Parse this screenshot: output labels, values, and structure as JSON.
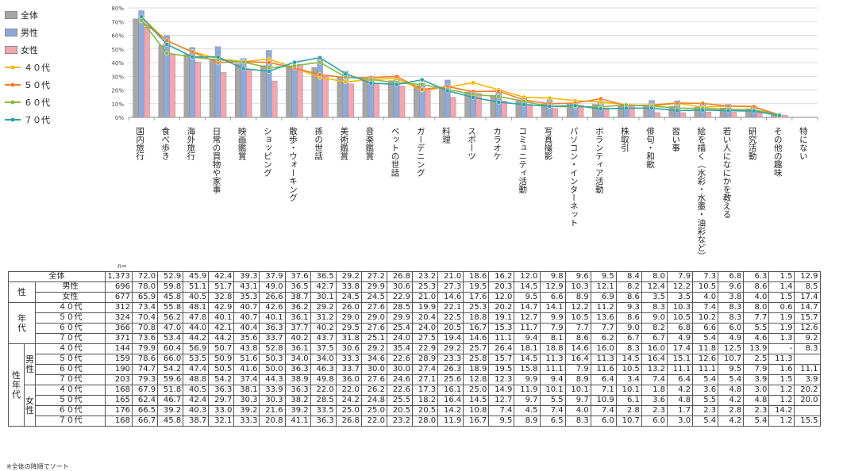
{
  "chart_data": {
    "type": "bar",
    "ylim": [
      0,
      80
    ],
    "y_ticks": [
      "0%",
      "10%",
      "20%",
      "30%",
      "40%",
      "50%",
      "60%",
      "70%",
      "80%"
    ],
    "categories": [
      "国内旅行",
      "食べ歩き",
      "海外旅行",
      "日常の買物や家事",
      "映画鑑賞",
      "ショッピング",
      "散歩・ウォーキング",
      "孫の世話",
      "美術鑑賞",
      "音楽鑑賞",
      "ペットの世話",
      "ガーデニング",
      "料理",
      "スポーツ",
      "カラオケ",
      "コミュニティ活動",
      "写真撮影",
      "パソコン・インターネット",
      "ボランティア活動",
      "株取引",
      "俳句・和歌",
      "習い事",
      "絵を描く（水彩・水墨・油彩など）",
      "若い人になにかを教える",
      "研究活動",
      "その他の趣味",
      "特にない"
    ],
    "bar_series": [
      {
        "name": "全体",
        "color": "#a6a6a6",
        "values": [
          72.0,
          52.9,
          45.9,
          42.4,
          39.3,
          37.9,
          37.6,
          36.5,
          29.2,
          27.2,
          26.8,
          23.2,
          21.0,
          18.6,
          16.2,
          12.0,
          9.8,
          9.6,
          9.5,
          8.4,
          8.0,
          7.9,
          7.3,
          6.8,
          6.3,
          1.5
        ]
      },
      {
        "name": "男性",
        "color": "#8eaadb",
        "values": [
          78.0,
          59.8,
          51.1,
          51.7,
          43.1,
          49.0,
          36.5,
          42.7,
          33.8,
          29.9,
          30.6,
          25.3,
          27.3,
          19.5,
          20.3,
          14.5,
          12.9,
          10.3,
          12.1,
          8.2,
          12.4,
          12.2,
          10.5,
          9.6,
          8.6,
          1.4
        ]
      },
      {
        "name": "女性",
        "color": "#f4a6b0",
        "values": [
          65.9,
          45.8,
          40.5,
          32.8,
          35.3,
          26.6,
          38.7,
          30.1,
          24.5,
          24.5,
          22.9,
          21.0,
          14.6,
          17.6,
          12.0,
          9.5,
          6.6,
          8.9,
          6.9,
          8.6,
          3.5,
          3.5,
          4.0,
          3.8,
          4.0,
          1.5
        ]
      }
    ],
    "line_series": [
      {
        "name": "４０代",
        "color": "#f5b800",
        "values": [
          73.4,
          55.8,
          48.1,
          42.9,
          40.7,
          42.6,
          36.2,
          29.2,
          26.0,
          27.6,
          28.5,
          19.9,
          22.1,
          25.3,
          20.2,
          14.7,
          14.1,
          12.2,
          11.2,
          9.3,
          8.3,
          10.3,
          7.4,
          8.3,
          8.0,
          0.6
        ]
      },
      {
        "name": "５０代",
        "color": "#f08030",
        "values": [
          70.4,
          56.2,
          47.8,
          40.1,
          40.7,
          40.1,
          36.1,
          31.2,
          29.0,
          29.0,
          29.9,
          20.4,
          22.5,
          18.8,
          19.1,
          12.7,
          9.9,
          10.5,
          13.6,
          8.6,
          9.0,
          10.5,
          10.2,
          8.3,
          7.7,
          1.9
        ]
      },
      {
        "name": "６０代",
        "color": "#8ab840",
        "values": [
          70.8,
          47.0,
          44.0,
          42.1,
          40.4,
          36.3,
          37.7,
          40.2,
          29.5,
          27.6,
          25.4,
          24.0,
          20.5,
          16.7,
          15.3,
          11.7,
          7.9,
          7.7,
          7.7,
          9.0,
          8.2,
          6.8,
          6.6,
          6.0,
          5.5,
          1.9
        ]
      },
      {
        "name": "７０代",
        "color": "#31a2a8",
        "values": [
          73.6,
          53.4,
          44.2,
          44.2,
          35.6,
          33.7,
          40.2,
          43.7,
          31.8,
          25.1,
          24.0,
          27.5,
          19.4,
          14.6,
          11.1,
          9.4,
          8.1,
          8.6,
          6.2,
          6.7,
          6.7,
          4.9,
          5.4,
          4.9,
          4.6,
          1.3
        ]
      }
    ],
    "n_label": "n="
  },
  "table": {
    "rows": [
      {
        "g1": "",
        "g2": "",
        "label": "全体",
        "n": "1,373",
        "v": [
          "72.0",
          "52.9",
          "45.9",
          "42.4",
          "39.3",
          "37.9",
          "37.6",
          "36.5",
          "29.2",
          "27.2",
          "26.8",
          "23.2",
          "21.0",
          "18.6",
          "16.2",
          "12.0",
          "9.8",
          "9.6",
          "9.5",
          "8.4",
          "8.0",
          "7.9",
          "7.3",
          "6.8",
          "6.3",
          "1.5",
          "12.9"
        ]
      },
      {
        "g1": "性",
        "g2": "",
        "label": "男性",
        "n": "696",
        "v": [
          "78.0",
          "59.8",
          "51.1",
          "51.7",
          "43.1",
          "49.0",
          "36.5",
          "42.7",
          "33.8",
          "29.9",
          "30.6",
          "25.3",
          "27.3",
          "19.5",
          "20.3",
          "14.5",
          "12.9",
          "10.3",
          "12.1",
          "8.2",
          "12.4",
          "12.2",
          "10.5",
          "9.6",
          "8.6",
          "1.4",
          "8.5"
        ]
      },
      {
        "g1": "",
        "g2": "",
        "label": "女性",
        "n": "677",
        "v": [
          "65.9",
          "45.8",
          "40.5",
          "32.8",
          "35.3",
          "26.6",
          "38.7",
          "30.1",
          "24.5",
          "24.5",
          "22.9",
          "21.0",
          "14.6",
          "17.6",
          "12.0",
          "9.5",
          "6.6",
          "8.9",
          "6.9",
          "8.6",
          "3.5",
          "3.5",
          "4.0",
          "3.8",
          "4.0",
          "1.5",
          "17.4"
        ]
      },
      {
        "g1": "年代",
        "g2": "",
        "label": "４０代",
        "n": "312",
        "v": [
          "73.4",
          "55.8",
          "48.1",
          "42.9",
          "40.7",
          "42.6",
          "36.2",
          "29.2",
          "26.0",
          "27.6",
          "28.5",
          "19.9",
          "22.1",
          "25.3",
          "20.2",
          "14.7",
          "14.1",
          "12.2",
          "11.2",
          "9.3",
          "8.3",
          "10.3",
          "7.4",
          "8.3",
          "8.0",
          "0.6",
          "14.7"
        ]
      },
      {
        "g1": "",
        "g2": "",
        "label": "５０代",
        "n": "324",
        "v": [
          "70.4",
          "56.2",
          "47.8",
          "40.1",
          "40.7",
          "40.1",
          "36.1",
          "31.2",
          "29.0",
          "29.0",
          "29.9",
          "20.4",
          "22.5",
          "18.8",
          "19.1",
          "12.7",
          "9.9",
          "10.5",
          "13.6",
          "8.6",
          "9.0",
          "10.5",
          "10.2",
          "8.3",
          "7.7",
          "1.9",
          "15.7"
        ]
      },
      {
        "g1": "",
        "g2": "",
        "label": "６０代",
        "n": "366",
        "v": [
          "70.8",
          "47.0",
          "44.0",
          "42.1",
          "40.4",
          "36.3",
          "37.7",
          "40.2",
          "29.5",
          "27.6",
          "25.4",
          "24.0",
          "20.5",
          "16.7",
          "15.3",
          "11.7",
          "7.9",
          "7.7",
          "7.7",
          "9.0",
          "8.2",
          "6.8",
          "6.6",
          "6.0",
          "5.5",
          "1.9",
          "12.6"
        ]
      },
      {
        "g1": "",
        "g2": "",
        "label": "７０代",
        "n": "371",
        "v": [
          "73.6",
          "53.4",
          "44.2",
          "44.2",
          "35.6",
          "33.7",
          "40.2",
          "43.7",
          "31.8",
          "25.1",
          "24.0",
          "27.5",
          "19.4",
          "14.6",
          "11.1",
          "9.4",
          "8.1",
          "8.6",
          "6.2",
          "6.7",
          "6.7",
          "4.9",
          "5.4",
          "4.9",
          "4.6",
          "1.3",
          "9.2"
        ]
      },
      {
        "g1": "性年代",
        "g2": "男性",
        "label": "４０代",
        "n": "144",
        "v": [
          "79.9",
          "60.4",
          "56.9",
          "50.7",
          "43.8",
          "52.8",
          "36.1",
          "37.5",
          "30.6",
          "29.2",
          "35.4",
          "22.9",
          "29.2",
          "25.7",
          "26.4",
          "18.1",
          "18.8",
          "14.6",
          "16.0",
          "8.3",
          "16.0",
          "17.4",
          "11.8",
          "12.5",
          "13.9",
          "-",
          "8.3"
        ]
      },
      {
        "g1": "",
        "g2": "",
        "label": "５０代",
        "n": "159",
        "v": [
          "78.6",
          "66.0",
          "53.5",
          "50.9",
          "51.6",
          "50.3",
          "34.0",
          "34.0",
          "33.3",
          "34.6",
          "22.6",
          "28.9",
          "23.3",
          "25.8",
          "15.7",
          "14.5",
          "11.3",
          "16.4",
          "11.3",
          "14.5",
          "16.4",
          "15.1",
          "12.6",
          "10.7",
          "2.5",
          "11.3"
        ]
      },
      {
        "g1": "",
        "g2": "",
        "label": "６０代",
        "n": "190",
        "v": [
          "74.7",
          "54.2",
          "47.4",
          "50.5",
          "41.6",
          "50.0",
          "36.3",
          "46.3",
          "33.7",
          "30.0",
          "30.0",
          "27.4",
          "26.3",
          "18.9",
          "19.5",
          "15.8",
          "11.1",
          "7.9",
          "11.6",
          "10.5",
          "13.2",
          "11.1",
          "11.1",
          "9.5",
          "7.9",
          "1.6",
          "11.1"
        ]
      },
      {
        "g1": "",
        "g2": "",
        "label": "７０代",
        "n": "203",
        "v": [
          "79.3",
          "59.6",
          "48.8",
          "54.2",
          "37.4",
          "44.3",
          "38.9",
          "49.8",
          "36.0",
          "27.6",
          "24.6",
          "27.1",
          "25.6",
          "12.8",
          "12.3",
          "9.9",
          "9.4",
          "8.9",
          "6.4",
          "3.4",
          "7.4",
          "6.4",
          "5.4",
          "5.4",
          "3.9",
          "1.5",
          "3.9"
        ]
      },
      {
        "g1": "",
        "g2": "女性",
        "label": "４０代",
        "n": "168",
        "v": [
          "67.9",
          "51.8",
          "40.5",
          "36.3",
          "38.1",
          "33.9",
          "36.3",
          "22.0",
          "22.0",
          "26.2",
          "22.6",
          "17.3",
          "16.1",
          "25.0",
          "14.9",
          "11.9",
          "10.1",
          "10.1",
          "7.1",
          "10.1",
          "1.8",
          "4.2",
          "3.6",
          "4.8",
          "3.0",
          "1.2",
          "20.2"
        ]
      },
      {
        "g1": "",
        "g2": "",
        "label": "５０代",
        "n": "165",
        "v": [
          "62.4",
          "46.7",
          "42.4",
          "29.7",
          "30.3",
          "30.3",
          "38.2",
          "28.5",
          "24.2",
          "24.8",
          "25.5",
          "18.2",
          "16.4",
          "14.5",
          "12.7",
          "9.7",
          "5.5",
          "9.7",
          "10.9",
          "6.1",
          "3.6",
          "4.8",
          "5.5",
          "4.2",
          "4.8",
          "1.2",
          "20.0"
        ]
      },
      {
        "g1": "",
        "g2": "",
        "label": "６０代",
        "n": "176",
        "v": [
          "66.5",
          "39.2",
          "40.3",
          "33.0",
          "39.2",
          "21.6",
          "39.2",
          "33.5",
          "25.0",
          "25.0",
          "20.5",
          "20.5",
          "14.2",
          "10.8",
          "7.4",
          "4.5",
          "7.4",
          "4.0",
          "7.4",
          "2.8",
          "2.3",
          "1.7",
          "2.3",
          "2.8",
          "2.3",
          "14.2"
        ]
      },
      {
        "g1": "",
        "g2": "",
        "label": "７０代",
        "n": "168",
        "v": [
          "66.7",
          "45.8",
          "38.7",
          "32.1",
          "33.3",
          "20.8",
          "41.1",
          "36.3",
          "26.8",
          "22.0",
          "23.2",
          "28.0",
          "11.9",
          "16.7",
          "9.5",
          "8.9",
          "6.5",
          "8.3",
          "6.0",
          "10.7",
          "6.0",
          "3.0",
          "5.4",
          "4.2",
          "5.4",
          "1.2",
          "15.5"
        ]
      }
    ],
    "group_labels": {
      "sex": "性",
      "age": "年\n代",
      "sexage": "性\n年\n代",
      "male": "男\n性",
      "female": "女\n性"
    }
  },
  "footnote": "※全体の降順でソート"
}
